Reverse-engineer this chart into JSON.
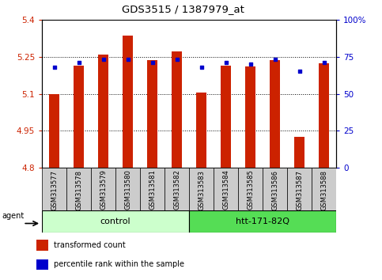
{
  "title": "GDS3515 / 1387979_at",
  "samples": [
    "GSM313577",
    "GSM313578",
    "GSM313579",
    "GSM313580",
    "GSM313581",
    "GSM313582",
    "GSM313583",
    "GSM313584",
    "GSM313585",
    "GSM313586",
    "GSM313587",
    "GSM313588"
  ],
  "transformed_count": [
    5.1,
    5.215,
    5.26,
    5.335,
    5.235,
    5.27,
    5.105,
    5.215,
    5.21,
    5.235,
    4.925,
    5.225
  ],
  "percentile_rank": [
    68,
    71,
    73,
    73,
    71,
    73,
    68,
    71,
    70,
    73,
    65,
    71
  ],
  "y_min": 4.8,
  "y_max": 5.4,
  "y_ticks": [
    4.8,
    4.95,
    5.1,
    5.25,
    5.4
  ],
  "y_tick_labels": [
    "4.8",
    "4.95",
    "5.1",
    "5.25",
    "5.4"
  ],
  "right_y_ticks": [
    0,
    25,
    50,
    75,
    100
  ],
  "right_y_labels": [
    "0",
    "25",
    "50",
    "75",
    "100%"
  ],
  "bar_color": "#cc2200",
  "dot_color": "#0000cc",
  "group1_label": "control",
  "group2_label": "htt-171-82Q",
  "group1_indices": [
    0,
    1,
    2,
    3,
    4,
    5
  ],
  "group2_indices": [
    6,
    7,
    8,
    9,
    10,
    11
  ],
  "group1_color": "#ccffcc",
  "group2_color": "#55dd55",
  "legend_bar_label": "transformed count",
  "legend_dot_label": "percentile rank within the sample",
  "agent_label": "agent",
  "label_area_bg": "#cccccc",
  "bar_width": 0.4
}
